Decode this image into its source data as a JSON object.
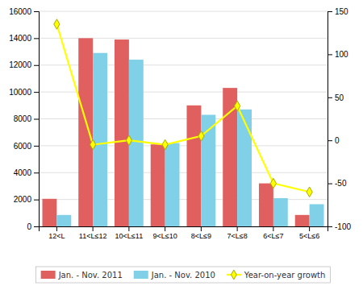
{
  "chart_data": {
    "type": "bar",
    "categories": [
      "12<L",
      "11<L≤12",
      "10<L≤11",
      "9<L≤10",
      "8<L≤9",
      "7<L≤8",
      "6<L≤7",
      "5<L≤6"
    ],
    "series": [
      {
        "name": "Jan. - Nov. 2011",
        "color": "#e06060",
        "values": [
          2050,
          14000,
          13900,
          6100,
          9000,
          10300,
          3200,
          850
        ]
      },
      {
        "name": "Jan. - Nov. 2010",
        "color": "#80d0e8",
        "values": [
          850,
          12900,
          12400,
          6200,
          8300,
          8700,
          2100,
          1650
        ]
      },
      {
        "name": "Year-on-year growth",
        "type": "line",
        "axis": "y2",
        "color": "#ffff00",
        "marker": "diamond",
        "values": [
          135,
          -5,
          0,
          -5,
          5,
          40,
          -50,
          -60
        ]
      }
    ],
    "ylim": [
      0,
      16000
    ],
    "yticks": [
      0,
      2000,
      4000,
      6000,
      8000,
      10000,
      12000,
      14000,
      16000
    ],
    "y2lim": [
      -100,
      150
    ],
    "y2ticks": [
      -100,
      -50,
      0,
      50,
      100,
      150
    ],
    "grid": true,
    "legend": "bottom"
  }
}
